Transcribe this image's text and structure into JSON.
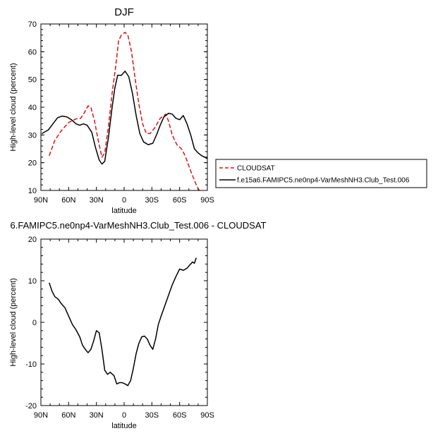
{
  "chart_data": [
    {
      "type": "line",
      "title": "DJF",
      "xlabel": "latitude",
      "ylabel": "High-level cloud (percent)",
      "xlim": [
        90,
        -90
      ],
      "ylim": [
        10,
        70
      ],
      "xticks": [
        90,
        60,
        30,
        0,
        -30,
        -60,
        -90
      ],
      "xtick_labels": [
        "90N",
        "60N",
        "30N",
        "0",
        "30S",
        "60S",
        "90S"
      ],
      "yticks": [
        10,
        20,
        30,
        40,
        50,
        60,
        70
      ],
      "ytick_labels": [
        "10",
        "20",
        "30",
        "40",
        "50",
        "60",
        "70"
      ],
      "legend": {
        "placement": "right"
      },
      "series": [
        {
          "name": "CLOUDSAT",
          "color": "#e01010",
          "dash": "dashed",
          "points": [
            [
              81,
              22.5
            ],
            [
              75,
              28
            ],
            [
              68,
              31.5
            ],
            [
              60,
              34.5
            ],
            [
              52,
              35.8
            ],
            [
              47,
              36
            ],
            [
              43,
              38
            ],
            [
              39,
              40.5
            ],
            [
              36,
              40
            ],
            [
              32,
              35
            ],
            [
              28,
              28
            ],
            [
              24,
              22
            ],
            [
              21,
              23.5
            ],
            [
              17,
              33
            ],
            [
              13,
              45
            ],
            [
              9,
              55
            ],
            [
              6,
              64
            ],
            [
              3,
              66
            ],
            [
              -1,
              67
            ],
            [
              -4,
              66
            ],
            [
              -8,
              60
            ],
            [
              -12,
              50
            ],
            [
              -16,
              41
            ],
            [
              -20,
              34
            ],
            [
              -24,
              30.5
            ],
            [
              -28,
              30.5
            ],
            [
              -33,
              32.5
            ],
            [
              -39,
              36
            ],
            [
              -45,
              37.5
            ],
            [
              -48,
              35
            ],
            [
              -52,
              30
            ],
            [
              -57,
              26.5
            ],
            [
              -62,
              25
            ],
            [
              -66,
              22.5
            ],
            [
              -72,
              17
            ],
            [
              -78,
              12
            ],
            [
              -82,
              9.5
            ]
          ]
        },
        {
          "name": "f.e15a6.FAMIPC5.ne0np4-VarMeshNH3.Club_Test.006",
          "color": "#000000",
          "dash": "solid",
          "points": [
            [
              89,
              30.5
            ],
            [
              82,
              31.8
            ],
            [
              77,
              34
            ],
            [
              72,
              36.2
            ],
            [
              67,
              36.8
            ],
            [
              62,
              36.5
            ],
            [
              57,
              35.5
            ],
            [
              52,
              34
            ],
            [
              48,
              33.5
            ],
            [
              44,
              34
            ],
            [
              40,
              33.5
            ],
            [
              35,
              31
            ],
            [
              31,
              25.5
            ],
            [
              27,
              21
            ],
            [
              24,
              19.5
            ],
            [
              21,
              20.5
            ],
            [
              17,
              29
            ],
            [
              13,
              40
            ],
            [
              10,
              47
            ],
            [
              7,
              51.5
            ],
            [
              3,
              51.5
            ],
            [
              -1,
              53
            ],
            [
              -5,
              51
            ],
            [
              -9,
              45
            ],
            [
              -13,
              37
            ],
            [
              -17,
              30.5
            ],
            [
              -21,
              27.5
            ],
            [
              -26,
              26.5
            ],
            [
              -31,
              27
            ],
            [
              -35,
              30
            ],
            [
              -39,
              33.5
            ],
            [
              -43,
              36.5
            ],
            [
              -48,
              37.8
            ],
            [
              -52,
              37.5
            ],
            [
              -56,
              36
            ],
            [
              -60,
              35.5
            ],
            [
              -64,
              37
            ],
            [
              -68,
              34
            ],
            [
              -72,
              30
            ],
            [
              -76,
              25
            ],
            [
              -80,
              23.5
            ],
            [
              -84,
              22.5
            ],
            [
              -90,
              21.5
            ]
          ]
        }
      ]
    },
    {
      "type": "line",
      "title": "6.FAMIPC5.ne0np4-VarMeshNH3.Club_Test.006 - CLOUDSAT",
      "xlabel": "latitude",
      "ylabel": "High-level cloud (percent)",
      "xlim": [
        90,
        -90
      ],
      "ylim": [
        -20,
        20
      ],
      "xticks": [
        90,
        60,
        30,
        0,
        -30,
        -60,
        -90
      ],
      "xtick_labels": [
        "90N",
        "60N",
        "30N",
        "0",
        "30S",
        "60S",
        "90S"
      ],
      "yticks": [
        -20,
        -10,
        0,
        10,
        20
      ],
      "ytick_labels": [
        "-20",
        "-10",
        "0",
        "10",
        "20"
      ],
      "series": [
        {
          "color": "#000000",
          "dash": "solid",
          "points": [
            [
              81,
              9.5
            ],
            [
              78,
              7.5
            ],
            [
              75,
              6.2
            ],
            [
              71,
              5.5
            ],
            [
              68,
              4.5
            ],
            [
              64,
              3.5
            ],
            [
              60,
              1.5
            ],
            [
              56,
              -0.5
            ],
            [
              52,
              -1.8
            ],
            [
              48,
              -3.5
            ],
            [
              45,
              -5.5
            ],
            [
              42,
              -6.5
            ],
            [
              39,
              -7.3
            ],
            [
              36,
              -6.5
            ],
            [
              33,
              -4.5
            ],
            [
              30,
              -2
            ],
            [
              27,
              -2.5
            ],
            [
              24,
              -6.5
            ],
            [
              21,
              -11.5
            ],
            [
              18,
              -12.5
            ],
            [
              15,
              -12
            ],
            [
              11,
              -12.8
            ],
            [
              8,
              -14.8
            ],
            [
              5,
              -14.5
            ],
            [
              2,
              -14.5
            ],
            [
              -1,
              -14.8
            ],
            [
              -4,
              -15.2
            ],
            [
              -7,
              -14
            ],
            [
              -10,
              -11
            ],
            [
              -13,
              -7.5
            ],
            [
              -16,
              -5
            ],
            [
              -19,
              -3.5
            ],
            [
              -22,
              -3.3
            ],
            [
              -25,
              -4
            ],
            [
              -28,
              -5.5
            ],
            [
              -31,
              -6.5
            ],
            [
              -34,
              -4
            ],
            [
              -37,
              -0.5
            ],
            [
              -40,
              1.5
            ],
            [
              -44,
              4
            ],
            [
              -48,
              6.5
            ],
            [
              -52,
              9
            ],
            [
              -56,
              11
            ],
            [
              -60,
              12.8
            ],
            [
              -64,
              12.5
            ],
            [
              -68,
              13
            ],
            [
              -71,
              13.8
            ],
            [
              -74,
              14.5
            ],
            [
              -76,
              14.2
            ],
            [
              -78,
              15.5
            ]
          ]
        }
      ]
    }
  ]
}
